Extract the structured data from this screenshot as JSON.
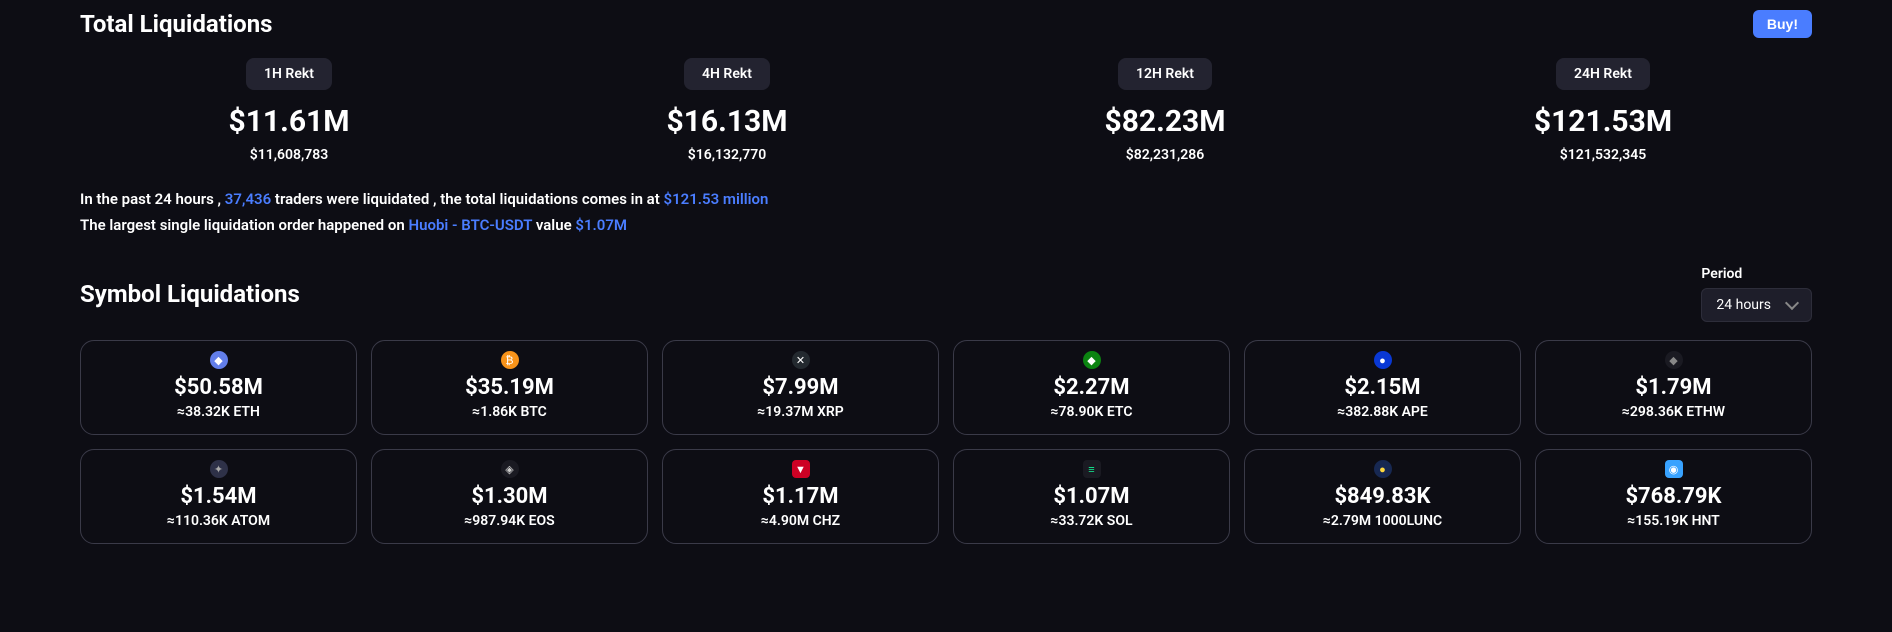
{
  "header": {
    "title": "Total Liquidations",
    "buy_label": "Buy!"
  },
  "rekt": [
    {
      "label": "1H Rekt",
      "value": "$11.61M",
      "sub": "$11,608,783"
    },
    {
      "label": "4H Rekt",
      "value": "$16.13M",
      "sub": "$16,132,770"
    },
    {
      "label": "12H Rekt",
      "value": "$82.23M",
      "sub": "$82,231,286"
    },
    {
      "label": "24H Rekt",
      "value": "$121.53M",
      "sub": "$121,532,345"
    }
  ],
  "summary": {
    "line1_a": "In the past 24 hours , ",
    "traders": "37,436",
    "line1_b": " traders were liquidated , the total liquidations comes in at ",
    "total": "$121.53 million",
    "line2_a": "The largest single liquidation order happened on ",
    "exchange": "Huobi - BTC-USDT",
    "line2_b": " value ",
    "largest": "$1.07M"
  },
  "section2": {
    "title": "Symbol Liquidations",
    "period_label": "Period",
    "period_value": "24 hours"
  },
  "symbols": [
    {
      "value": "$50.58M",
      "sub": "≈38.32K ETH",
      "icon_bg": "#627eea",
      "icon_fg": "#fff",
      "glyph": "◆"
    },
    {
      "value": "$35.19M",
      "sub": "≈1.86K BTC",
      "icon_bg": "#f7931a",
      "icon_fg": "#fff",
      "glyph": "₿"
    },
    {
      "value": "$7.99M",
      "sub": "≈19.37M XRP",
      "icon_bg": "#23292f",
      "icon_fg": "#fff",
      "glyph": "✕"
    },
    {
      "value": "$2.27M",
      "sub": "≈78.90K ETC",
      "icon_bg": "#0b8311",
      "icon_fg": "#fff",
      "glyph": "◆"
    },
    {
      "value": "$2.15M",
      "sub": "≈382.88K APE",
      "icon_bg": "#0938d4",
      "icon_fg": "#fff",
      "glyph": "●"
    },
    {
      "value": "$1.79M",
      "sub": "≈298.36K ETHW",
      "icon_bg": "#1a1a22",
      "icon_fg": "#888",
      "glyph": "◆"
    },
    {
      "value": "$1.54M",
      "sub": "≈110.36K ATOM",
      "icon_bg": "#2e3148",
      "icon_fg": "#aaa",
      "glyph": "✦"
    },
    {
      "value": "$1.30M",
      "sub": "≈987.94K EOS",
      "icon_bg": "#1a1a22",
      "icon_fg": "#ccc",
      "glyph": "◈"
    },
    {
      "value": "$1.17M",
      "sub": "≈4.90M CHZ",
      "icon_bg": "#cd0124",
      "icon_fg": "#fff",
      "glyph": "▼",
      "square": true
    },
    {
      "value": "$1.07M",
      "sub": "≈33.72K SOL",
      "icon_bg": "#1a1a22",
      "icon_fg": "#14f195",
      "glyph": "≡",
      "square": true
    },
    {
      "value": "$849.83K",
      "sub": "≈2.79M 1000LUNC",
      "icon_bg": "#172852",
      "icon_fg": "#ffd83d",
      "glyph": "●"
    },
    {
      "value": "$768.79K",
      "sub": "≈155.19K HNT",
      "icon_bg": "#38a2ff",
      "icon_fg": "#fff",
      "glyph": "◉",
      "square": true
    }
  ]
}
